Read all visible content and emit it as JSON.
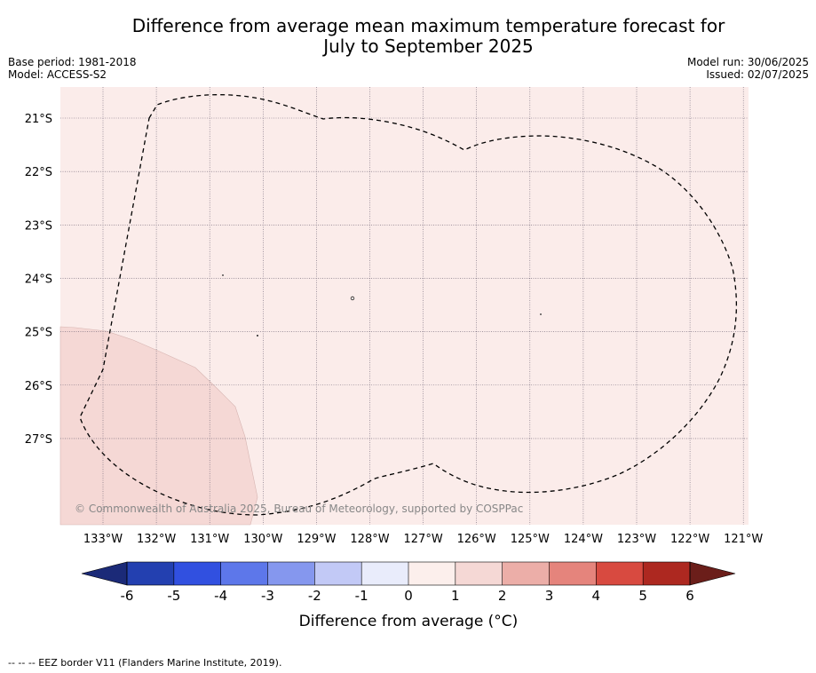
{
  "title": {
    "line1": "Difference from average mean maximum temperature forecast for",
    "line2": "July to September 2025"
  },
  "meta_left": {
    "base_period": "Base period: 1981-2018",
    "model": "Model: ACCESS-S2"
  },
  "meta_right": {
    "model_run": "Model run: 30/06/2025",
    "issued": "Issued: 02/07/2025"
  },
  "map": {
    "lat_labels": [
      "21°S",
      "22°S",
      "23°S",
      "24°S",
      "25°S",
      "26°S",
      "27°S"
    ],
    "lon_labels": [
      "133°W",
      "132°W",
      "131°W",
      "130°W",
      "129°W",
      "128°W",
      "127°W",
      "126°W",
      "125°W",
      "124°W",
      "123°W",
      "122°W",
      "121°W"
    ],
    "copyright": "© Commonwealth of Australia 2025, Bureau of Meteorology, supported by COSPPac",
    "background_color": "#fbecea",
    "anomaly_patch_color": "#f5d8d5",
    "grid_color": "#6a5f72"
  },
  "colorbar": {
    "label": "Difference from average (°C)",
    "ticks": [
      "-6",
      "-5",
      "-4",
      "-3",
      "-2",
      "-1",
      "0",
      "1",
      "2",
      "3",
      "4",
      "5",
      "6"
    ],
    "under_color": "#1b2a78",
    "over_color": "#6b1e1a",
    "colors": [
      "#2340b0",
      "#3150e0",
      "#5d77ea",
      "#8597ee",
      "#c2c9f6",
      "#e9ecfb",
      "#fcefec",
      "#f5d8d5",
      "#ecaea8",
      "#e5847c",
      "#d84a40",
      "#ad2820"
    ]
  },
  "footer": "-- -- -- EEZ border V11 (Flanders Marine Institute, 2019)."
}
